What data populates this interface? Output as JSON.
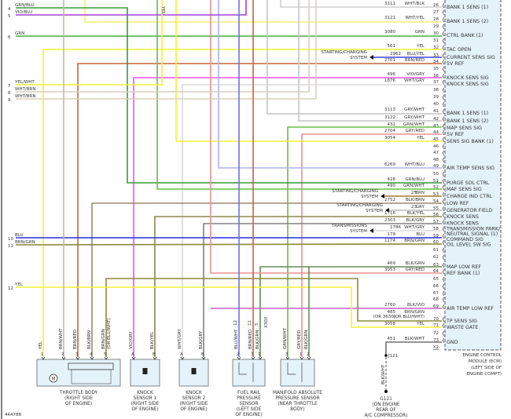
{
  "ecm": {
    "name_lines": [
      "ENGINE CONTROL",
      "MODULE (ECM)",
      "(LEFT SIDE OF",
      "ENGINE COMPT)"
    ],
    "connector": "X2",
    "pins": [
      {
        "pin": "26",
        "circuit": "3111",
        "color": "WHT/BLK",
        "label": "BANK 1 SENS (1)"
      },
      {
        "pin": "27"
      },
      {
        "pin": "28",
        "circuit": "3121",
        "color": "WHT/YEL",
        "label": "BANK 1 SENS (2)"
      },
      {
        "pin": "29"
      },
      {
        "pin": "30",
        "circuit": "3080",
        "color": "GRN",
        "label": "CTRL BANK (1)"
      },
      {
        "pin": "31"
      },
      {
        "pin": "32",
        "circuit": "561",
        "color": "YEL",
        "label": "TAC OPEN"
      },
      {
        "pin": "33",
        "circuit": "2962",
        "color": "BLU/YEL",
        "label": "CURRENT SENS SIG",
        "to": "STARTING/CHARGING|SYSTEM"
      },
      {
        "pin": "34",
        "circuit": "2701",
        "color": "BRN/RED",
        "label": "5V REF"
      },
      {
        "pin": "35"
      },
      {
        "pin": "36",
        "circuit": "496",
        "color": "VIO/GRY",
        "label": "KNOCK SENS SIG"
      },
      {
        "pin": "37",
        "circuit": "1876",
        "color": "WHT/GRY",
        "label": "KNOCK SENS SIG"
      },
      {
        "pin": "38"
      },
      {
        "pin": "39"
      },
      {
        "pin": "40"
      },
      {
        "pin": "41",
        "circuit": "3113",
        "color": "GRY/WHT",
        "label": "BANK 1 SENS (1)"
      },
      {
        "pin": "42",
        "circuit": "3122",
        "color": "GRY/WHT",
        "label": "BANK 1 SENS (2)"
      },
      {
        "pin": "43",
        "circuit": "432",
        "color": "GRN/WHT",
        "label": "MAP SENS SIG"
      },
      {
        "pin": "44",
        "circuit": "2704",
        "color": "GRY/RED",
        "label": "5V REF"
      },
      {
        "pin": "45",
        "circuit": "3054",
        "color": "YEL",
        "label": "SENS SIG BANK (1)"
      },
      {
        "pin": "46"
      },
      {
        "pin": "47"
      },
      {
        "pin": "48"
      },
      {
        "pin": "49",
        "circuit": "6269",
        "color": "WHT/BLU",
        "label": "AIR TEMP SENS SIG"
      },
      {
        "pin": "50"
      },
      {
        "pin": "51",
        "circuit": "428",
        "color": "GRN/BLU",
        "label": "PURGE SOL CTRL"
      },
      {
        "pin": "52",
        "circuit": "490",
        "color": "GRN/WHT",
        "label": "MAF SENS SIG"
      },
      {
        "pin": "53",
        "circuit": "25",
        "color": "BRN",
        "label": "CHARGE IND CTRL",
        "to": "STARTING/CHARGING|SYSTEM"
      },
      {
        "pin": "54",
        "circuit": "2752",
        "color": "BLK/BRN",
        "label": "LOW REF"
      },
      {
        "pin": "55",
        "circuit": "23",
        "color": "GRY",
        "label": "GENERATOR FIELD",
        "to": "STARTING/CHARGING|SYSTEM"
      },
      {
        "pin": "56",
        "circuit": "1716",
        "color": "BLK/YEL",
        "label": "KNOCK SENS"
      },
      {
        "pin": "57",
        "circuit": "2303",
        "color": "BLK/GRY",
        "label": "KNOCK SENS"
      },
      {
        "pin": "58",
        "circuit": "1786",
        "color": "WHT/GRY",
        "label": "TRANSMISSION PARK/",
        "to": "TRANSMISSIONS|SYSTEM"
      },
      {
        "pin": "59",
        "circuit": "179",
        "color": "BLU",
        "label": "NEUTRAL SIGNAL (1)"
      },
      {
        "pin": "60",
        "circuit": "1174",
        "color": "BRN/GRN",
        "label": "OIL LEVEL SW SIG"
      },
      {
        "pin": "61"
      },
      {
        "pin": "62"
      },
      {
        "pin": "63",
        "circuit": "469",
        "color": "BLK/GRN",
        "label": "MAP LOW REF"
      },
      {
        "pin": "64",
        "circuit": "3053",
        "color": "GRY/RED",
        "label": "REF BANK (1)"
      },
      {
        "pin": "65"
      },
      {
        "pin": "66"
      },
      {
        "pin": "67"
      },
      {
        "pin": "68"
      },
      {
        "pin": "69",
        "circuit": "2760",
        "color": "BLK/VIO",
        "label": "AIR TEMP LOW REF"
      },
      {
        "pin": "70",
        "circuit": "485",
        "circuit_alt": "(OR 3630)",
        "color": "BRN/GRN",
        "color_alt": "(OR BLU/WHT)",
        "label": "TP SENS SIG"
      },
      {
        "pin": "71",
        "circuit": "3058",
        "color": "YEL",
        "label": "WASTE GATE"
      },
      {
        "pin": "72"
      },
      {
        "pin": "73",
        "circuit": "451",
        "color": "BLK/WHT",
        "label": "GND"
      }
    ],
    "extra_label": "COMMAND SIG",
    "extra_label2": "KNOCK SENS"
  },
  "left_pins": [
    {
      "pin": "4",
      "color": "GRN/BLU"
    },
    {
      "pin": "5",
      "color": "VIO/BLU"
    },
    {
      "pin": "6",
      "color": "GRN"
    },
    {
      "pin": "7",
      "color": "YEL/WHT"
    },
    {
      "pin": "8",
      "color": "WHT/BRN"
    },
    {
      "pin": "9",
      "color": "WHT/BRN"
    },
    {
      "pin": "10",
      "color": "BLU"
    },
    {
      "pin": "11",
      "color": "BRN/GRN"
    },
    {
      "pin": "12",
      "color": "YEL"
    }
  ],
  "top_label": "YEL",
  "components": [
    {
      "id": "throttle-body",
      "lines": [
        "THROTTLE BODY",
        "(RIGHT SIDE",
        "OF ENGINE)"
      ],
      "pins": [
        {
          "pin": "1",
          "color": "YEL"
        },
        {
          "pin": "2",
          "color": "BRN/WHT"
        },
        {
          "pin": "3",
          "color": "BRN/RED"
        },
        {
          "pin": "4",
          "color": "BLK/BRN"
        },
        {
          "pin": "5",
          "color": "BRN/GRN",
          "alt": "(OR BLU/WHT)"
        }
      ],
      "motor": "M"
    },
    {
      "id": "knock-sensor-1",
      "lines": [
        "KNOCK",
        "SENSOR 1",
        "(RIGHT SIDE",
        "OF ENGINE)"
      ],
      "pins": [
        {
          "pin": "A",
          "color": "VIO/GRY"
        },
        {
          "pin": "B",
          "color": "BLK/YEL"
        }
      ]
    },
    {
      "id": "knock-sensor-2",
      "lines": [
        "KNOCK",
        "SENSOR 2",
        "(RIGHT SIDE",
        "OF ENGINE)"
      ],
      "pins": [
        {
          "pin": "A",
          "color": "WHT/GRY"
        },
        {
          "pin": "B",
          "color": "BLK/GRY"
        }
      ]
    },
    {
      "id": "fuel-rail-pressure-sensor",
      "lines": [
        "FUEL RAIL",
        "PRESSURE",
        "SENSOR",
        "(LEFT SIDE",
        "OF ENGINE)"
      ],
      "connector": "X300",
      "pins": [
        {
          "pin": "12",
          "bottom": "2",
          "color": "BLU/WHT"
        },
        {
          "pin": "11",
          "bottom": "3",
          "color": "BRN/RED"
        },
        {
          "pin": "5",
          "bottom": "1",
          "color": "BLK/GRN"
        }
      ]
    },
    {
      "id": "map-sensor",
      "lines": [
        "MANIFOLD ABSOLUTE",
        "PRESSURE SENSOR",
        "(NEAR THROTTLE",
        "BODY)"
      ],
      "pins": [
        {
          "pin": "3",
          "color": "GRN/WHT"
        },
        {
          "pin": "1",
          "color": "GRY/RED"
        },
        {
          "pin": "2",
          "color": "BLK/GRN"
        }
      ]
    }
  ],
  "ground": {
    "splice": "J121",
    "wire_color": "BLK/WHT",
    "lines": [
      "G121",
      "(ON ENGINE",
      "REAR OF",
      "A/C COMPRESSOR)"
    ]
  },
  "figure_number": "444788",
  "wire_colors": {
    "GRN": "#44b044",
    "GRN/BLU": "#3a9a3a",
    "GRN/WHT": "#66c044",
    "YEL": "#f2f232",
    "YEL/WHT": "#f2f232",
    "WHT": "#d8d8d8",
    "WHT/BRN": "#d8d0c0",
    "WHT/BLK": "#cfcfcf",
    "WHT/YEL": "#f0f070",
    "WHT/GRY": "#d8d8d8",
    "WHT/BLU": "#b0b0f0",
    "BRN/RED": "#c8643a",
    "BRN/WHT": "#c8b89a",
    "BRN": "#a07830",
    "BRN/GRN": "#8a8a3a",
    "VIO/BLU": "#a040e0",
    "VIO/GRY": "#f050f0",
    "BLU": "#2a2ae8",
    "BLU/WHT": "#7070f0",
    "BLU/YEL": "#4040e0",
    "GRY": "#bbbbbb",
    "GRY/WHT": "#c4c4c4",
    "GRY/RED": "#e89090",
    "BLK/GRN": "#6a8a5a",
    "BLK/BRN": "#9a8a70",
    "BLK/YEL": "#8a8a50",
    "BLK/GRY": "#808080",
    "BLK/VIO": "#c060c0",
    "BLK/WHT": "#707070"
  }
}
